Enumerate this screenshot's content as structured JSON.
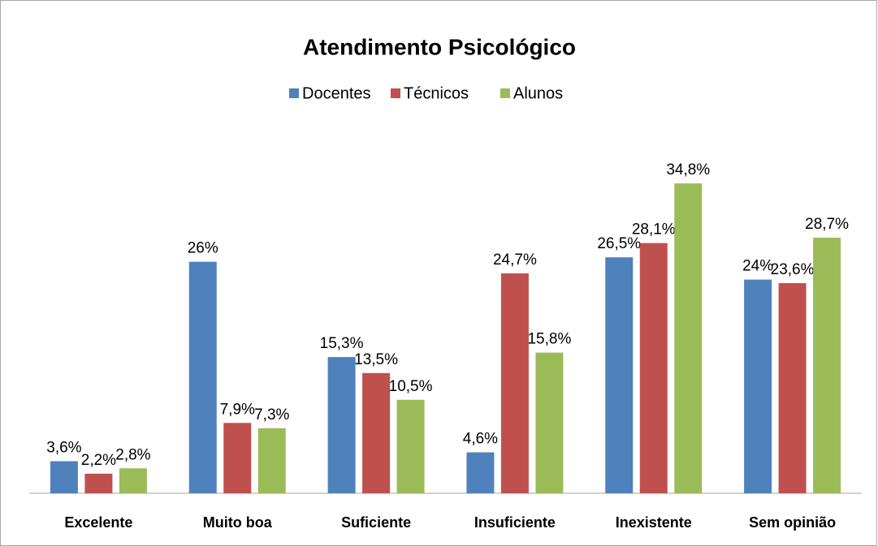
{
  "chart_data": {
    "type": "bar",
    "title": "Atendimento Psicológico",
    "categories": [
      "Excelente",
      "Muito boa",
      "Suficiente",
      "Insuficiente",
      "Inexistente",
      "Sem opinião"
    ],
    "series": [
      {
        "name": "Docentes",
        "color": "#4f81bd",
        "values": [
          3.6,
          26,
          15.3,
          4.6,
          26.5,
          24
        ],
        "value_labels": [
          "3,6%",
          "26%",
          "15,3%",
          "4,6%",
          "26,5%",
          "24%"
        ]
      },
      {
        "name": "Técnicos",
        "color": "#c0504d",
        "values": [
          2.2,
          7.9,
          13.5,
          24.7,
          28.1,
          23.6
        ],
        "value_labels": [
          "2,2%",
          "7,9%",
          "13,5%",
          "24,7%",
          "28,1%",
          "23,6%"
        ]
      },
      {
        "name": "Alunos",
        "color": "#9bbb59",
        "values": [
          2.8,
          7.3,
          10.5,
          15.8,
          34.8,
          28.7
        ],
        "value_labels": [
          "2,8%",
          "7,3%",
          "10,5%",
          "15,8%",
          "34,8%",
          "28,7%"
        ]
      }
    ],
    "ylim": [
      0,
      40
    ],
    "legend": "top"
  }
}
